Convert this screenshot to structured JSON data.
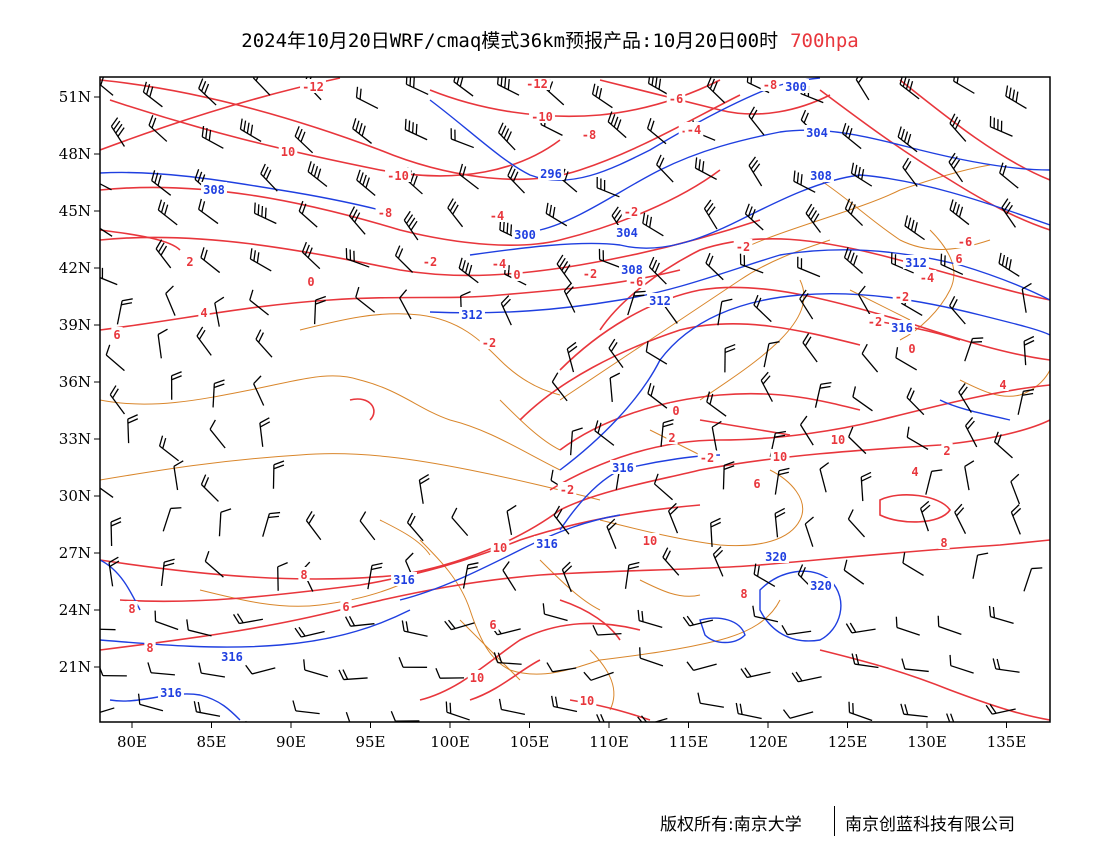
{
  "title": {
    "main": "2024年10月20日WRF/cmaq模式36km预报产品:10月20日00时",
    "level": "700hpa"
  },
  "footer": {
    "left": "版权所有:南京大学",
    "right": "南京创蓝科技有限公司"
  },
  "axes": {
    "lon_ticks": [
      "80E",
      "85E",
      "90E",
      "95E",
      "100E",
      "105E",
      "110E",
      "115E",
      "120E",
      "125E",
      "130E",
      "135E"
    ],
    "lat_ticks": [
      "51N",
      "48N",
      "45N",
      "42N",
      "39N",
      "36N",
      "33N",
      "30N",
      "27N",
      "24N",
      "21N"
    ],
    "lon_range": [
      78,
      138
    ],
    "lat_range": [
      18,
      52
    ]
  },
  "colors": {
    "temperature": "#e8363c",
    "height": "#1f3fe0",
    "border": "#d9862b",
    "wind": "#000000"
  },
  "temperature_labels": [
    "-12",
    "-12",
    "-10",
    "-6",
    "-8",
    "-6",
    "-4",
    "-8",
    "-6",
    "-10",
    "10",
    "-4",
    "-2",
    "-2",
    "-2",
    "0",
    "-2",
    "0",
    "-2",
    "-4",
    "-2",
    "-6",
    "-8",
    "-4",
    "2",
    "4",
    "6",
    "0",
    "2",
    "4",
    "6",
    "-2",
    "0",
    "-2",
    "0",
    "2",
    "-4",
    "-2",
    "4",
    "6",
    "8",
    "6",
    "6",
    "8",
    "8",
    "10",
    "10",
    "8",
    "8",
    "10",
    "10",
    "10",
    "10",
    "-8"
  ],
  "height_labels": [
    "300",
    "304",
    "308",
    "296",
    "308",
    "300",
    "304",
    "308",
    "312",
    "312",
    "312",
    "316",
    "316",
    "316",
    "316",
    "320",
    "320",
    "316",
    "316"
  ]
}
